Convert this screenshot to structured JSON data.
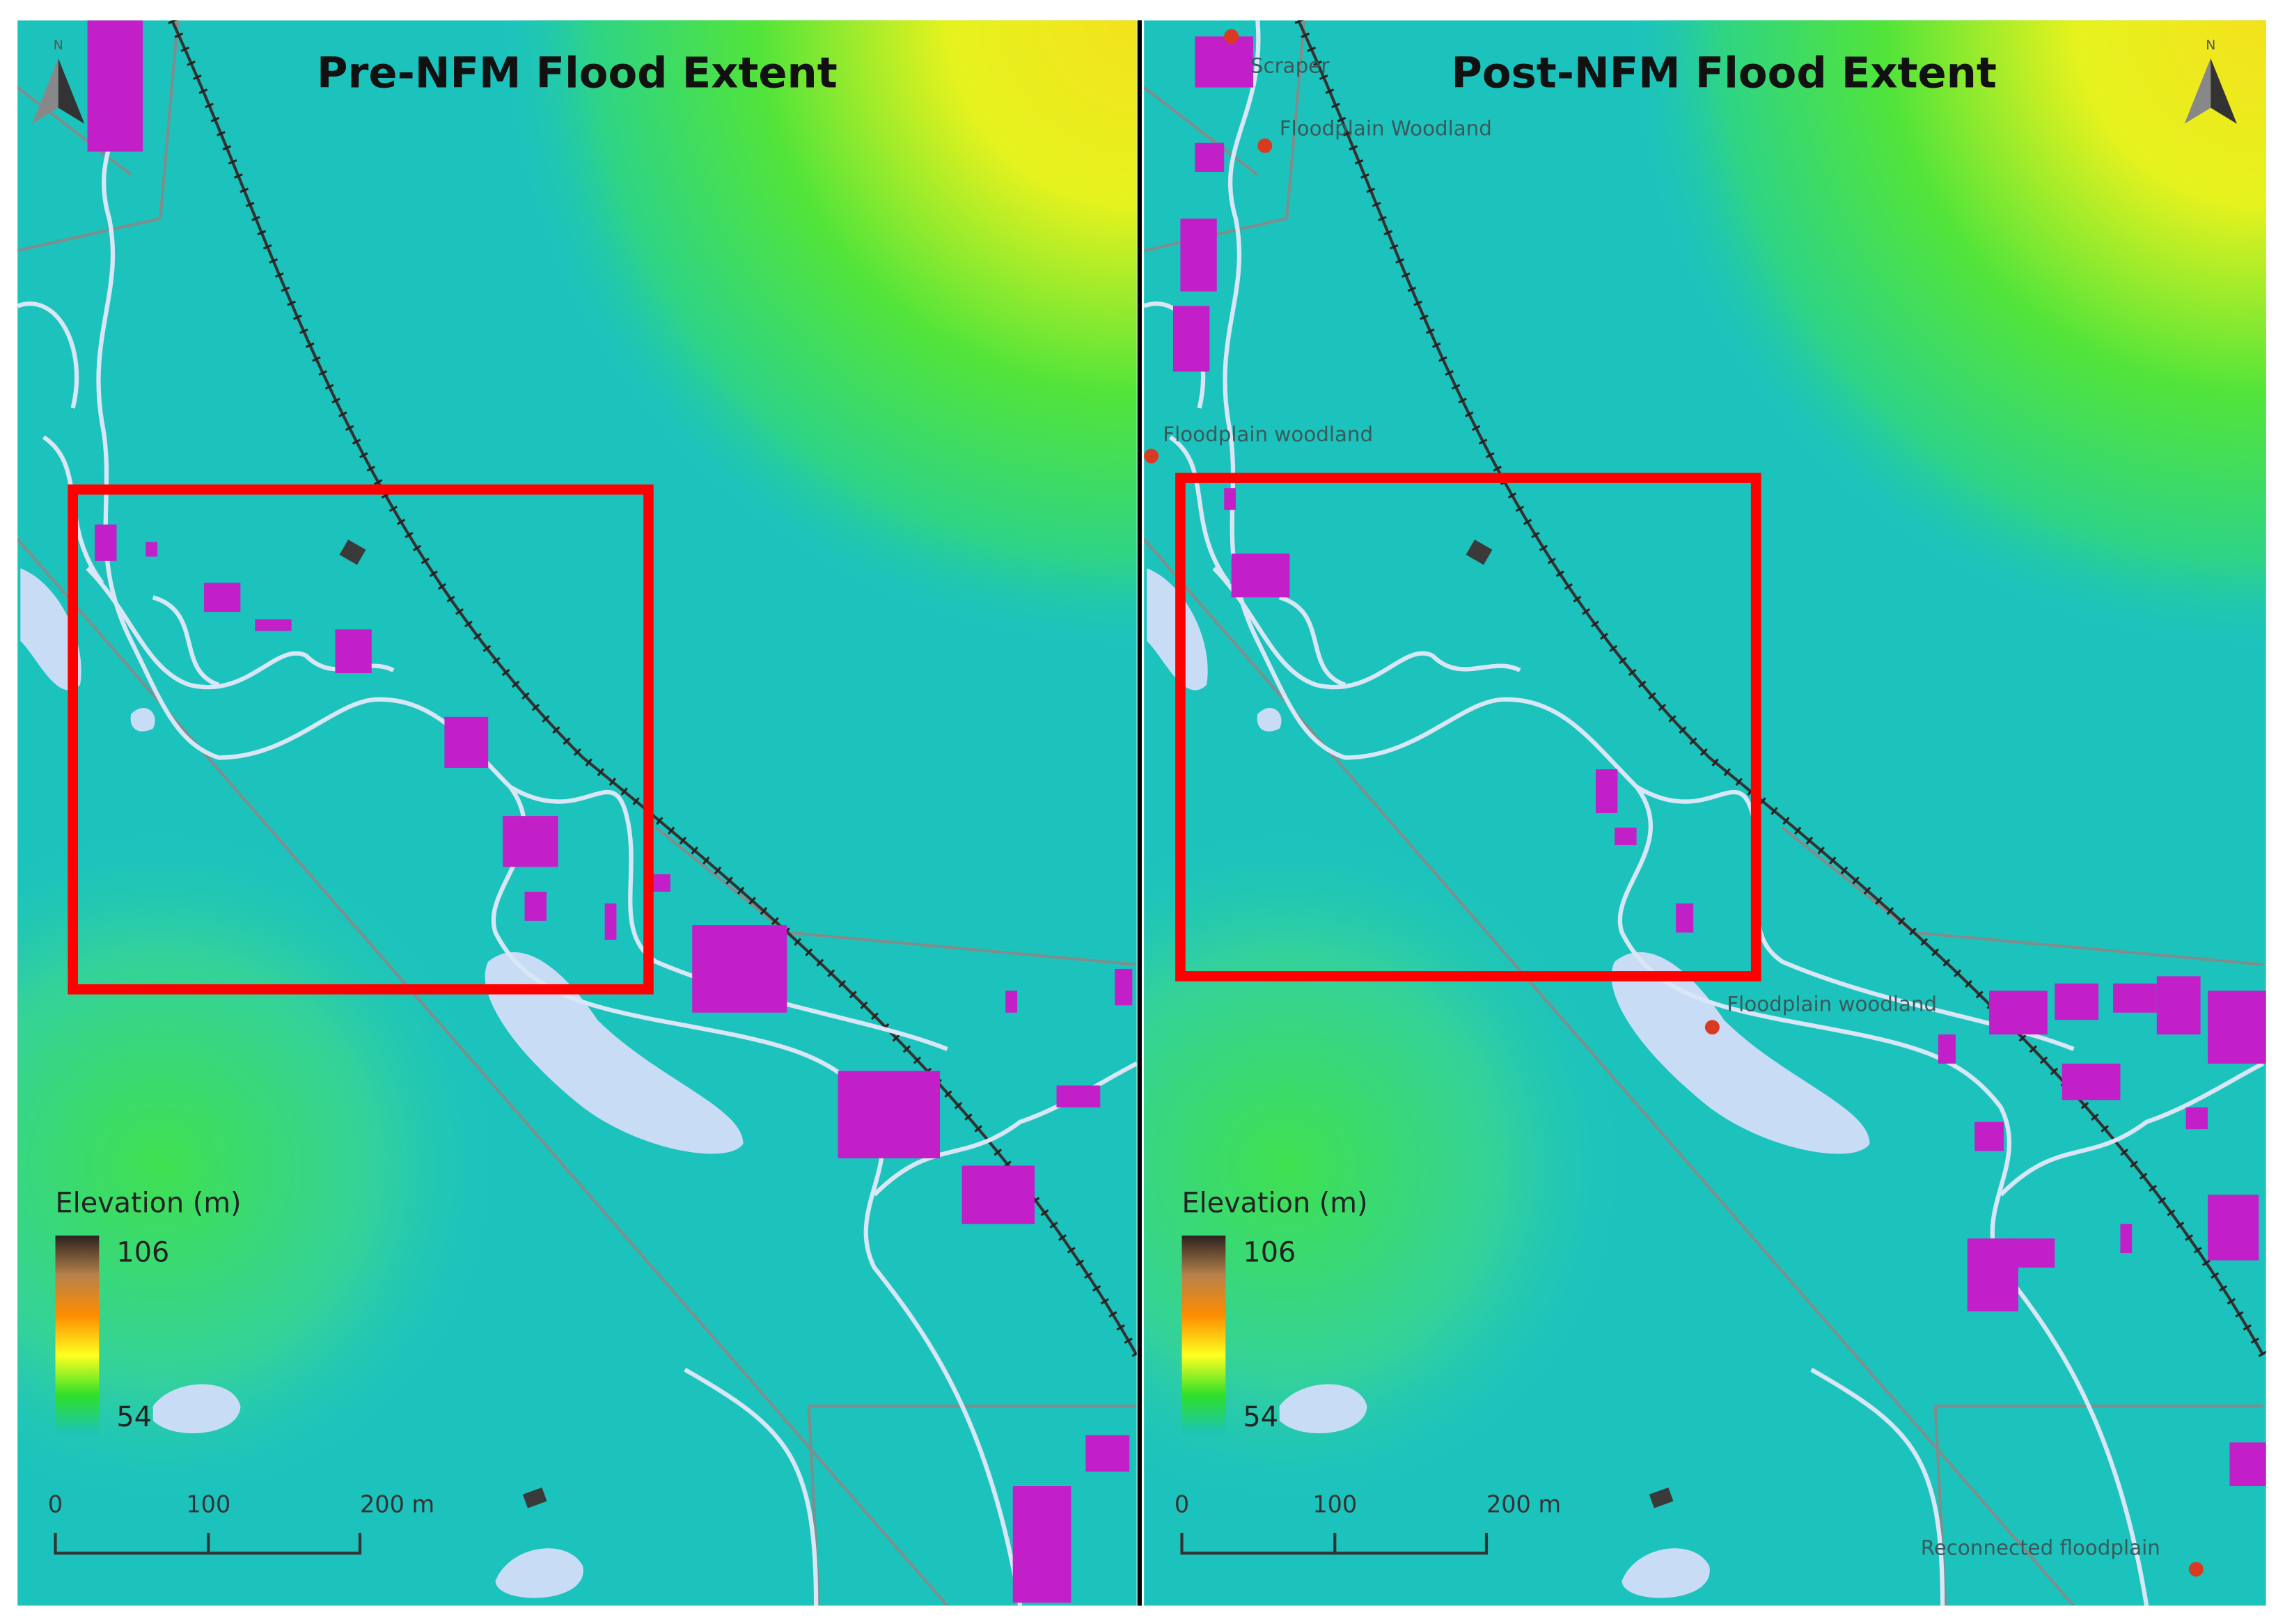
{
  "panels": [
    {
      "title": "Pre-NFM Flood Extent",
      "north": "N",
      "legend": {
        "title": "Elevation (m)",
        "max": "106",
        "min": "54"
      },
      "scale": [
        "0",
        "100",
        "200 m"
      ],
      "labels": []
    },
    {
      "title": "Post-NFM Flood Extent",
      "north": "N",
      "legend": {
        "title": "Elevation (m)",
        "max": "106",
        "min": "54"
      },
      "scale": [
        "0",
        "100",
        "200 m"
      ],
      "labels": [
        "Scraper",
        "Floodplain Woodland",
        "Floodplain woodland",
        "Floodplain woodland",
        "Reconnected floodplain"
      ]
    }
  ]
}
